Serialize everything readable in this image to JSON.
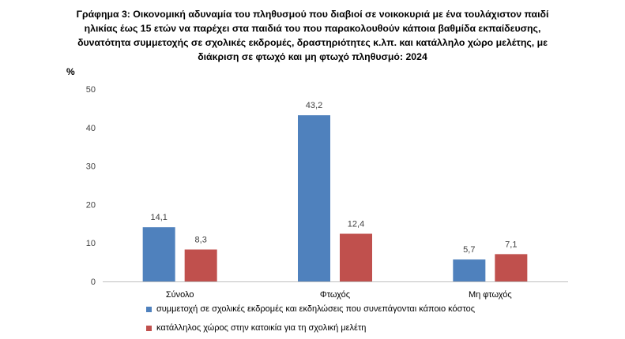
{
  "title_lines": [
    "Γράφημα 3: Οικονομική αδυναμία του πληθυσμού που διαβιοί σε νοικοκυριά με ένα τουλάχιστον παιδί",
    "ηλικίας έως 15 ετών να παρέχει στα παιδιά του που παρακολουθούν κάποια βαθμίδα εκπαίδευσης,",
    "δυνατότητα συμμετοχής σε σχολικές εκδρομές, δραστηριότητες κ.λπ. και κατάλληλο χώρο μελέτης, με",
    "διάκριση σε φτωχό και μη φτωχό πληθυσμό: 2024"
  ],
  "chart_data": {
    "type": "bar",
    "title": "Γράφημα 3: Οικονομική αδυναμία του πληθυσμού που διαβιοί σε νοικοκυριά με ένα τουλάχιστον παιδί ηλικίας έως 15 ετών να παρέχει στα παιδιά του που παρακολουθούν κάποια βαθμίδα εκπαίδευσης, δυνατότητα συμμετοχής σε σχολικές εκδρομές, δραστηριότητες κ.λπ. και κατάλληλο χώρο μελέτης, με διάκριση σε φτωχό και μη φτωχό πληθυσμό: 2024",
    "ylabel": "%",
    "ylim": [
      0,
      50
    ],
    "yticks": [
      "0",
      "10",
      "20",
      "30",
      "40",
      "50"
    ],
    "grid": false,
    "legend_position": "bottom",
    "categories": [
      "Σύνολο",
      "Φτωχός",
      "Μη φτωχός"
    ],
    "series": [
      {
        "name": "συμμετοχή σε σχολικές εκδρομές και εκδηλώσεις που συνεπάγονται κάποιο κόστος",
        "color": "#4f81bd",
        "values": [
          14.1,
          43.2,
          5.7
        ],
        "labels": [
          "14,1",
          "43,2",
          "5,7"
        ]
      },
      {
        "name": "κατάλληλος χώρος στην κατοικία για τη σχολική μελέτη",
        "color": "#c0504d",
        "values": [
          8.3,
          12.4,
          7.1
        ],
        "labels": [
          "8,3",
          "12,4",
          "7,1"
        ]
      }
    ]
  }
}
